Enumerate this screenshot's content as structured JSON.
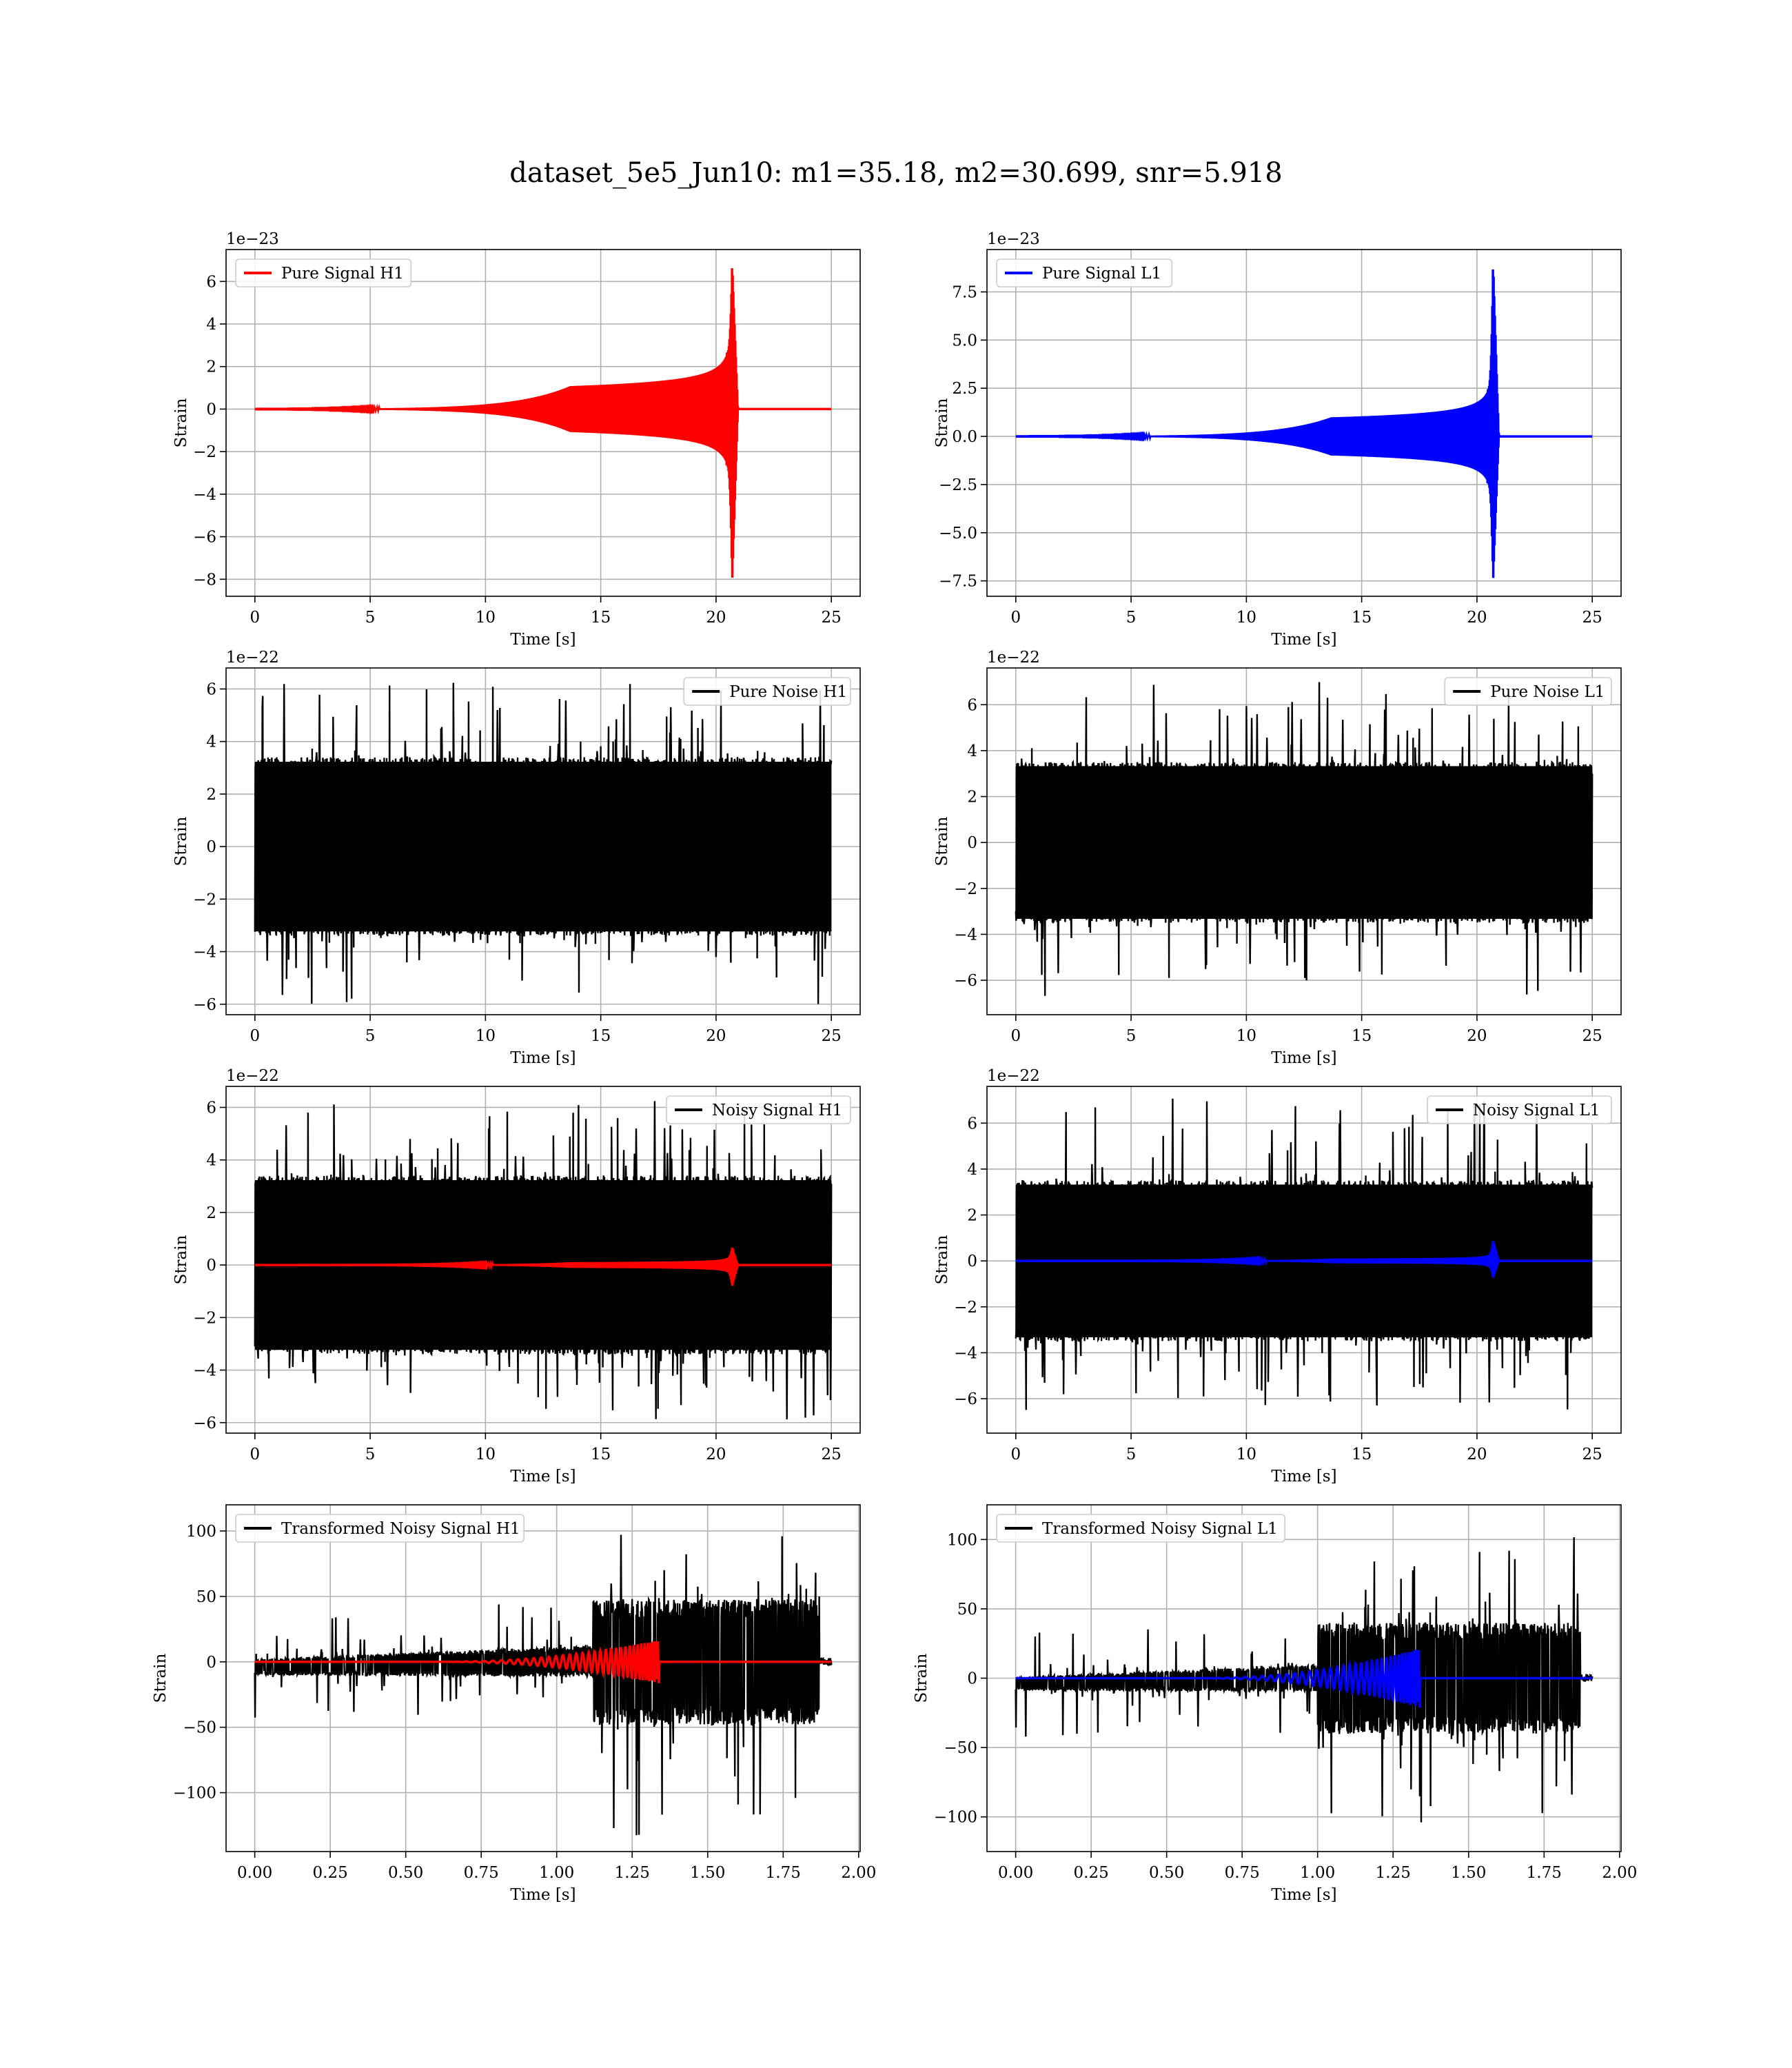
{
  "figure": {
    "title": "dataset_5e5_Jun10: m1=35.18, m2=30.699, snr=5.918"
  },
  "chart_data": [
    {
      "type": "line",
      "id": "pure-signal-h1",
      "title": "",
      "xlabel": "Time [s]",
      "ylabel": "Strain",
      "offset_label": "1e−23",
      "xlim": [
        -1.25,
        26.25
      ],
      "ylim": [
        -8.8,
        7.5
      ],
      "xticks": [
        0,
        5,
        10,
        15,
        20,
        25
      ],
      "xtick_labels": [
        "0",
        "5",
        "10",
        "15",
        "20",
        "25"
      ],
      "yticks": [
        -8,
        -6,
        -4,
        -2,
        0,
        2,
        4,
        6
      ],
      "ytick_labels": [
        "−8",
        "−6",
        "−4",
        "−2",
        "0",
        "2",
        "4",
        "6"
      ],
      "grid": true,
      "legend_position": "upper-left",
      "series": [
        {
          "name": "Pure Signal H1",
          "color": "#ff0000",
          "kind": "chirp",
          "t_start": 0,
          "t_end": 25,
          "t_merger": 20.7,
          "amp_pos_peak": 6.9,
          "amp_neg_peak": -8.2,
          "amp_plateau": 2.4,
          "legend": true
        }
      ]
    },
    {
      "type": "line",
      "id": "pure-signal-l1",
      "title": "",
      "xlabel": "Time [s]",
      "ylabel": "Strain",
      "offset_label": "1e−23",
      "xlim": [
        -1.25,
        26.25
      ],
      "ylim": [
        -8.3,
        9.7
      ],
      "xticks": [
        0,
        5,
        10,
        15,
        20,
        25
      ],
      "xtick_labels": [
        "0",
        "5",
        "10",
        "15",
        "20",
        "25"
      ],
      "yticks": [
        -7.5,
        -5.0,
        -2.5,
        0.0,
        2.5,
        5.0,
        7.5
      ],
      "ytick_labels": [
        "−7.5",
        "−5.0",
        "−2.5",
        "0.0",
        "2.5",
        "5.0",
        "7.5"
      ],
      "grid": true,
      "legend_position": "upper-left",
      "series": [
        {
          "name": "Pure Signal L1",
          "color": "#0000ff",
          "kind": "chirp",
          "t_start": 0,
          "t_end": 25,
          "t_merger": 20.7,
          "amp_pos_peak": 9.1,
          "amp_neg_peak": -7.6,
          "amp_plateau": 2.2,
          "legend": true
        }
      ]
    },
    {
      "type": "line",
      "id": "pure-noise-h1",
      "title": "",
      "xlabel": "Time [s]",
      "ylabel": "Strain",
      "offset_label": "1e−22",
      "xlim": [
        -1.25,
        26.25
      ],
      "ylim": [
        -6.4,
        6.8
      ],
      "xticks": [
        0,
        5,
        10,
        15,
        20,
        25
      ],
      "xtick_labels": [
        "0",
        "5",
        "10",
        "15",
        "20",
        "25"
      ],
      "yticks": [
        -6,
        -4,
        -2,
        0,
        2,
        4,
        6
      ],
      "ytick_labels": [
        "−6",
        "−4",
        "−2",
        "0",
        "2",
        "4",
        "6"
      ],
      "grid": true,
      "legend_position": "upper-right",
      "series": [
        {
          "name": "Pure Noise H1",
          "color": "#000000",
          "kind": "noise",
          "t_start": 0,
          "t_end": 25,
          "band": 3.4,
          "spike_max": 6.3,
          "spike_min": -6.0,
          "legend": true
        }
      ]
    },
    {
      "type": "line",
      "id": "pure-noise-l1",
      "title": "",
      "xlabel": "Time [s]",
      "ylabel": "Strain",
      "offset_label": "1e−22",
      "xlim": [
        -1.25,
        26.25
      ],
      "ylim": [
        -7.5,
        7.6
      ],
      "xticks": [
        0,
        5,
        10,
        15,
        20,
        25
      ],
      "xtick_labels": [
        "0",
        "5",
        "10",
        "15",
        "20",
        "25"
      ],
      "yticks": [
        -6,
        -4,
        -2,
        0,
        2,
        4,
        6
      ],
      "ytick_labels": [
        "−6",
        "−4",
        "−2",
        "0",
        "2",
        "4",
        "6"
      ],
      "grid": true,
      "legend_position": "upper-right",
      "series": [
        {
          "name": "Pure Noise L1",
          "color": "#000000",
          "kind": "noise",
          "t_start": 0,
          "t_end": 25,
          "band": 3.5,
          "spike_max": 7.1,
          "spike_min": -6.8,
          "legend": true
        }
      ]
    },
    {
      "type": "line",
      "id": "noisy-signal-h1",
      "title": "",
      "xlabel": "Time [s]",
      "ylabel": "Strain",
      "offset_label": "1e−22",
      "xlim": [
        -1.25,
        26.25
      ],
      "ylim": [
        -6.4,
        6.8
      ],
      "xticks": [
        0,
        5,
        10,
        15,
        20,
        25
      ],
      "xtick_labels": [
        "0",
        "5",
        "10",
        "15",
        "20",
        "25"
      ],
      "yticks": [
        -6,
        -4,
        -2,
        0,
        2,
        4,
        6
      ],
      "ytick_labels": [
        "−6",
        "−4",
        "−2",
        "0",
        "2",
        "4",
        "6"
      ],
      "grid": true,
      "legend_position": "upper-right",
      "series": [
        {
          "name": "Noisy Signal H1",
          "color": "#000000",
          "kind": "noise",
          "t_start": 0,
          "t_end": 25,
          "band": 3.4,
          "spike_max": 6.3,
          "spike_min": -6.0,
          "legend": true
        },
        {
          "name": "",
          "color": "#ff0000",
          "kind": "chirp",
          "t_start": 0,
          "t_end": 25,
          "t_merger": 20.7,
          "amp_pos_peak": 0.69,
          "amp_neg_peak": -0.82,
          "amp_plateau": 0.24,
          "legend": false
        }
      ]
    },
    {
      "type": "line",
      "id": "noisy-signal-l1",
      "title": "",
      "xlabel": "Time [s]",
      "ylabel": "Strain",
      "offset_label": "1e−22",
      "xlim": [
        -1.25,
        26.25
      ],
      "ylim": [
        -7.5,
        7.6
      ],
      "xticks": [
        0,
        5,
        10,
        15,
        20,
        25
      ],
      "xtick_labels": [
        "0",
        "5",
        "10",
        "15",
        "20",
        "25"
      ],
      "yticks": [
        -6,
        -4,
        -2,
        0,
        2,
        4,
        6
      ],
      "ytick_labels": [
        "−6",
        "−4",
        "−2",
        "0",
        "2",
        "4",
        "6"
      ],
      "grid": true,
      "legend_position": "upper-right",
      "series": [
        {
          "name": "Noisy Signal L1",
          "color": "#000000",
          "kind": "noise",
          "t_start": 0,
          "t_end": 25,
          "band": 3.5,
          "spike_max": 7.1,
          "spike_min": -6.8,
          "legend": true
        },
        {
          "name": "",
          "color": "#0000ff",
          "kind": "chirp",
          "t_start": 0,
          "t_end": 25,
          "t_merger": 20.7,
          "amp_pos_peak": 0.91,
          "amp_neg_peak": -0.76,
          "amp_plateau": 0.22,
          "legend": false
        }
      ]
    },
    {
      "type": "line",
      "id": "transformed-noisy-signal-h1",
      "title": "",
      "xlabel": "Time [s]",
      "ylabel": "Strain",
      "offset_label": "",
      "xlim": [
        -0.095,
        2.005
      ],
      "ylim": [
        -145,
        120
      ],
      "xticks": [
        0,
        0.25,
        0.5,
        0.75,
        1.0,
        1.25,
        1.5,
        1.75,
        2.0
      ],
      "xtick_labels": [
        "0.00",
        "0.25",
        "0.50",
        "0.75",
        "1.00",
        "1.25",
        "1.50",
        "1.75",
        "2.00"
      ],
      "yticks": [
        -100,
        -50,
        0,
        50,
        100
      ],
      "ytick_labels": [
        "−100",
        "−50",
        "0",
        "50",
        "100"
      ],
      "grid": true,
      "legend_position": "upper-left",
      "series": [
        {
          "name": "Transformed Noisy Signal H1",
          "color": "#000000",
          "kind": "tnoise",
          "t_start": 0,
          "t_end": 1.91,
          "t_jump": 1.12,
          "t_end_noise": 1.87,
          "band_low": 10,
          "band_high": 48,
          "spike_max": 108,
          "spike_min": -133,
          "legend": true
        },
        {
          "name": "",
          "color": "#ff0000",
          "kind": "tchirp",
          "t_start": 0,
          "t_end": 1.91,
          "t_merger": 1.34,
          "amp_peak": 17,
          "legend": false
        }
      ]
    },
    {
      "type": "line",
      "id": "transformed-noisy-signal-l1",
      "title": "",
      "xlabel": "Time [s]",
      "ylabel": "Strain",
      "offset_label": "",
      "xlim": [
        -0.095,
        2.005
      ],
      "ylim": [
        -125,
        125
      ],
      "xticks": [
        0,
        0.25,
        0.5,
        0.75,
        1.0,
        1.25,
        1.5,
        1.75,
        2.0
      ],
      "xtick_labels": [
        "0.00",
        "0.25",
        "0.50",
        "0.75",
        "1.00",
        "1.25",
        "1.50",
        "1.75",
        "2.00"
      ],
      "yticks": [
        -100,
        -50,
        0,
        50,
        100
      ],
      "ytick_labels": [
        "−100",
        "−50",
        "0",
        "50",
        "100"
      ],
      "grid": true,
      "legend_position": "upper-left",
      "series": [
        {
          "name": "Transformed Noisy Signal L1",
          "color": "#000000",
          "kind": "tnoise",
          "t_start": 0,
          "t_end": 1.91,
          "t_jump": 1.0,
          "t_end_noise": 1.87,
          "band_low": 8,
          "band_high": 40,
          "spike_max": 106,
          "spike_min": -111,
          "legend": true
        },
        {
          "name": "",
          "color": "#0000ff",
          "kind": "tchirp",
          "t_start": 0,
          "t_end": 1.91,
          "t_merger": 1.34,
          "amp_peak": 22,
          "legend": false
        }
      ]
    }
  ]
}
